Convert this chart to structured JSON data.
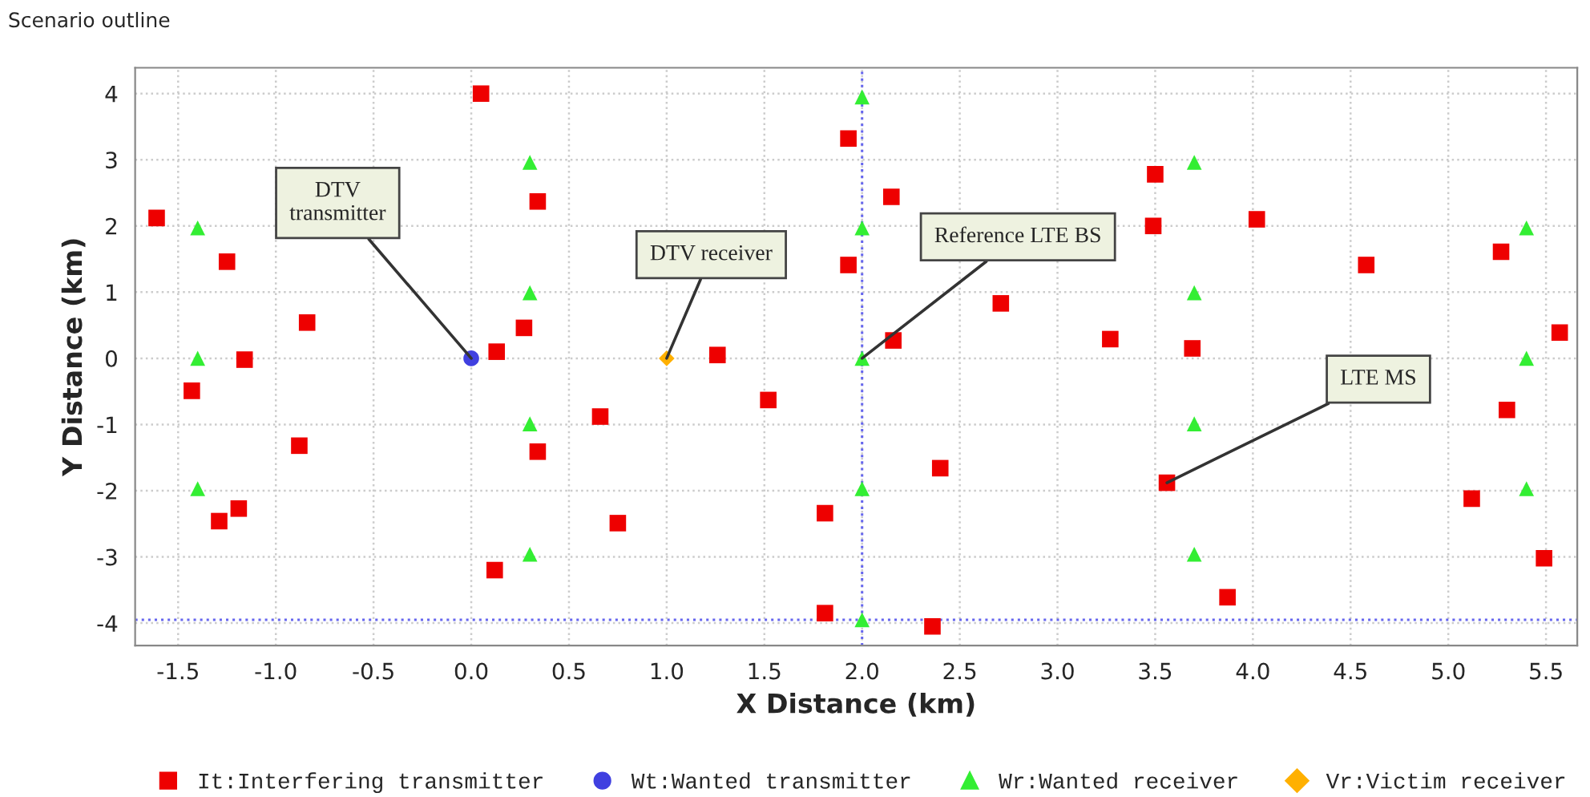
{
  "chart_data": {
    "type": "scatter",
    "title": "Scenario outline",
    "xlabel": "X Distance (km)",
    "ylabel": "Y Distance (km)",
    "xlim": [
      -1.72,
      5.66
    ],
    "ylim": [
      -4.34,
      4.39
    ],
    "xticks": [
      {
        "value": -1.5,
        "label": "-1.5"
      },
      {
        "value": -1,
        "label": "-1.0"
      },
      {
        "value": -0.5,
        "label": "-0.5"
      },
      {
        "value": 0,
        "label": "0.0"
      },
      {
        "value": 0.5,
        "label": "0.5"
      },
      {
        "value": 1,
        "label": "1.0"
      },
      {
        "value": 1.5,
        "label": "1.5"
      },
      {
        "value": 2,
        "label": "2.0"
      },
      {
        "value": 2.5,
        "label": "2.5"
      },
      {
        "value": 3,
        "label": "3.0"
      },
      {
        "value": 3.5,
        "label": "3.5"
      },
      {
        "value": 4,
        "label": "4.0"
      },
      {
        "value": 4.5,
        "label": "4.5"
      },
      {
        "value": 5,
        "label": "5.0"
      },
      {
        "value": 5.5,
        "label": "5.5"
      }
    ],
    "yticks": [
      -4,
      -3,
      -2,
      -1,
      0,
      1,
      2,
      3,
      4
    ],
    "grid": true,
    "legend": "bottom",
    "series": [
      {
        "name": "It:Interfering transmitter",
        "color": "#ee0000",
        "marker": "square",
        "x": [
          0.05,
          -1.61,
          -1.25,
          -0.84,
          -1.16,
          -1.43,
          -0.88,
          -1.29,
          -1.19,
          0.12,
          0.13,
          0.27,
          0.34,
          0.34,
          0.66,
          0.75,
          1.26,
          1.52,
          1.93,
          1.93,
          1.81,
          1.81,
          2.15,
          2.16,
          2.4,
          2.36,
          2.71,
          3.27,
          3.5,
          3.49,
          3.69,
          3.56,
          3.87,
          4.02,
          4.58,
          5.27,
          5.3,
          5.12,
          5.49,
          5.57
        ],
        "values": [
          4.0,
          2.12,
          1.46,
          0.54,
          -0.02,
          -0.49,
          -1.32,
          -2.46,
          -2.27,
          -3.2,
          0.1,
          0.46,
          2.37,
          -1.41,
          -0.88,
          -2.49,
          0.05,
          -0.63,
          3.32,
          1.41,
          -2.34,
          -3.85,
          2.44,
          0.27,
          -1.66,
          -4.05,
          0.83,
          0.29,
          2.78,
          2.0,
          0.15,
          -1.88,
          -3.61,
          2.1,
          1.41,
          1.61,
          -0.78,
          -2.12,
          -3.02,
          0.39
        ]
      },
      {
        "name": "Wt:Wanted transmitter",
        "color": "#4040e0",
        "marker": "circle",
        "x": [
          0
        ],
        "values": [
          0
        ]
      },
      {
        "name": "Wr:Wanted receiver",
        "color": "#33ee33",
        "marker": "triangle",
        "x": [
          -1.4,
          -1.4,
          -1.4,
          0.3,
          0.3,
          0.3,
          0.3,
          2,
          2,
          2,
          2,
          2,
          3.7,
          3.7,
          3.7,
          3.7,
          5.4,
          5.4,
          5.4
        ],
        "values": [
          1.97,
          0,
          -1.97,
          2.96,
          0.99,
          -0.99,
          -2.96,
          3.95,
          1.97,
          0,
          -1.97,
          -3.95,
          2.96,
          0.99,
          -0.99,
          -2.96,
          1.97,
          0,
          -1.97
        ]
      },
      {
        "name": "Vr:Victim receiver",
        "color": "#ffb000",
        "marker": "diamond",
        "x": [
          1
        ],
        "values": [
          0
        ]
      }
    ],
    "ref_lines": [
      {
        "axis": "x",
        "value": 2,
        "color": "#6666ee",
        "line_style": "dotted"
      },
      {
        "axis": "y",
        "value": -3.95,
        "color": "#6666ee",
        "line_style": "dotted"
      }
    ],
    "annotations": [
      {
        "text": "DTV\ntransmitter",
        "x": 0,
        "y": 0
      },
      {
        "text": "DTV receiver",
        "x": 1,
        "y": 0
      },
      {
        "text": "Reference LTE BS",
        "x": 2,
        "y": 0
      },
      {
        "text": "LTE MS",
        "x": 3.56,
        "y": -1.88
      }
    ]
  }
}
